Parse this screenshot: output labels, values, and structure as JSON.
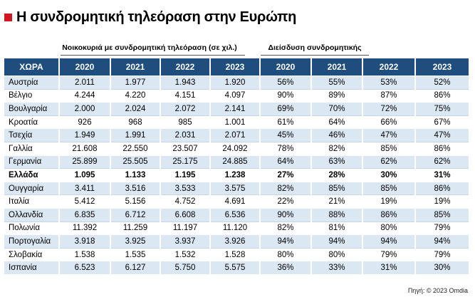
{
  "title": "Η συνδρομητική τηλεόραση στην Ευρώπη",
  "group_households": "Νοικοκυριά με συνδρομητική τηλεόραση (σε χιλ.)",
  "group_penetration": "Διείσδυση συνδρομητικής",
  "headers": [
    "ΧΩΡΑ",
    "2020",
    "2021",
    "2022",
    "2023",
    "2020",
    "2021",
    "2022",
    "2023"
  ],
  "rows": [
    {
      "country": "Αυστρία",
      "values": [
        "2.011",
        "1.977",
        "1.943",
        "1.920",
        "56%",
        "55%",
        "53%",
        "52%"
      ]
    },
    {
      "country": "Βέλγιο",
      "values": [
        "4.244",
        "4.220",
        "4.151",
        "4.097",
        "90%",
        "89%",
        "87%",
        "86%"
      ]
    },
    {
      "country": "Βουλγαρία",
      "values": [
        "2.000",
        "2.024",
        "2.072",
        "2.141",
        "69%",
        "70%",
        "72%",
        "75%"
      ]
    },
    {
      "country": "Κροατία",
      "values": [
        "926",
        "968",
        "985",
        "1.001",
        "61%",
        "64%",
        "66%",
        "67%"
      ]
    },
    {
      "country": "Τσεχία",
      "values": [
        "1.949",
        "1.991",
        "2.031",
        "2.071",
        "45%",
        "46%",
        "47%",
        "47%"
      ]
    },
    {
      "country": "Γαλλία",
      "values": [
        "21.608",
        "22.550",
        "23.507",
        "24.092",
        "78%",
        "82%",
        "85%",
        "86%"
      ]
    },
    {
      "country": "Γερμανία",
      "values": [
        "25.899",
        "25.505",
        "25.175",
        "24.885",
        "64%",
        "63%",
        "62%",
        "62%"
      ]
    },
    {
      "country": "Ελλάδα",
      "values": [
        "1.095",
        "1.133",
        "1.195",
        "1.238",
        "27%",
        "28%",
        "30%",
        "31%"
      ],
      "bold": true
    },
    {
      "country": "Ουγγαρία",
      "values": [
        "3.411",
        "3.516",
        "3.533",
        "3.575",
        "82%",
        "85%",
        "85%",
        "86%"
      ]
    },
    {
      "country": "Ιταλία",
      "values": [
        "5.412",
        "5.156",
        "4.752",
        "4.691",
        "22%",
        "21%",
        "19%",
        "19%"
      ]
    },
    {
      "country": "Ολλανδία",
      "values": [
        "6.835",
        "6.712",
        "6.608",
        "6.536",
        "90%",
        "88%",
        "86%",
        "85%"
      ]
    },
    {
      "country": "Πολωνία",
      "values": [
        "11.392",
        "11.259",
        "11.197",
        "11.120",
        "82%",
        "81%",
        "80%",
        "79%"
      ]
    },
    {
      "country": "Πορτογαλία",
      "values": [
        "3.918",
        "3.925",
        "3.937",
        "3.926",
        "94%",
        "94%",
        "94%",
        "94%"
      ]
    },
    {
      "country": "Σλοβακία",
      "values": [
        "1.538",
        "1.535",
        "1.532",
        "1.528",
        "80%",
        "80%",
        "79%",
        "79%"
      ]
    },
    {
      "country": "Ισπανία",
      "values": [
        "6.523",
        "6.127",
        "5.750",
        "5.575",
        "36%",
        "33%",
        "31%",
        "30%"
      ]
    }
  ],
  "source": "Πηγή: © 2023 Omdia"
}
